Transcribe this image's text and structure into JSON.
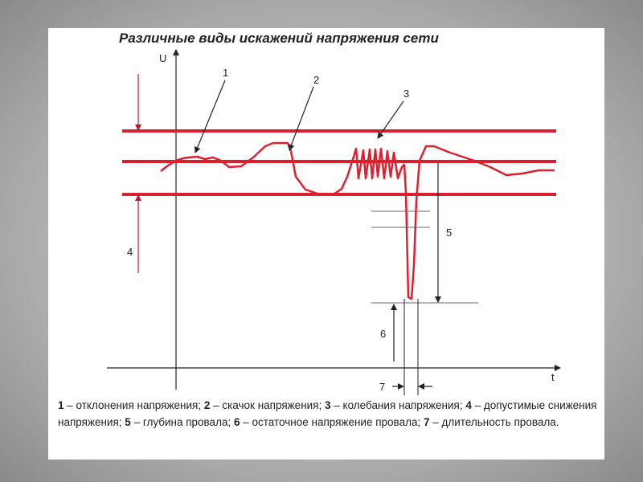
{
  "title": "Различные виды искажений напряжения сети",
  "axes": {
    "y": "U",
    "x": "t"
  },
  "markers": [
    "1",
    "2",
    "3",
    "4",
    "5",
    "6",
    "7"
  ],
  "caption": [
    {
      "num": "1",
      "text": " – отклонения напряжения; "
    },
    {
      "num": "2",
      "text": " – скачок напряжения; "
    },
    {
      "num": "3",
      "text": " – колебания напряжения; "
    },
    {
      "num": "4",
      "text": " – допустимые снижения напряжения; "
    },
    {
      "num": "5",
      "text": " – глубина провала; "
    },
    {
      "num": "6",
      "text": " – остаточное напряжение провала; "
    },
    {
      "num": "7",
      "text": " – длительность провала."
    }
  ]
}
